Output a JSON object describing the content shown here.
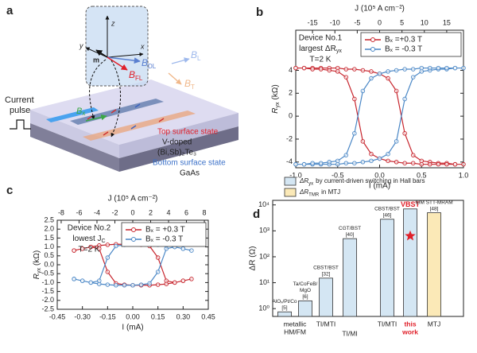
{
  "panel_a": {
    "label": "a",
    "z": "z",
    "x": "x",
    "y": "y",
    "m": "m",
    "b_dl": [
      "B",
      "DL"
    ],
    "b_fl": [
      "B",
      "FL"
    ],
    "b_l": [
      "B",
      "L"
    ],
    "b_t": [
      "B",
      "T"
    ],
    "current_pulse": [
      "Current",
      "pulse"
    ],
    "b_x": [
      "B",
      "x"
    ],
    "top_surface": "Top surface state",
    "v_doped": "V-doped",
    "material": "(Bi,Sb)₂Te₃",
    "bottom_surface": "Bottom surface state",
    "substrate": "GaAs"
  },
  "chart_data": [
    {
      "type": "line",
      "panel_label": "b",
      "x2label": "J (10⁵ A cm⁻²)",
      "xlabel": "I (mA)",
      "ylabel": [
        "R",
        "yx",
        "(kΩ)"
      ],
      "annotation": {
        "device": "Device No.1",
        "metric": [
          "largest ΔR",
          "yx"
        ],
        "temperature": "T=2 K"
      },
      "xlim": [
        -1,
        1
      ],
      "xticks": [
        {
          "value": -1,
          "label": "-1.0"
        },
        -0.5,
        {
          "value": 0,
          "label": "0.0"
        },
        0.5,
        {
          "value": 1,
          "label": "1.0"
        }
      ],
      "x2lim": [
        -18.75,
        18.75
      ],
      "x2ticks": [
        -15,
        -10,
        -5,
        0,
        5,
        10,
        15
      ],
      "ylim": [
        -4.5,
        7.5
      ],
      "yticks": [
        -4,
        -2,
        0,
        2,
        4
      ],
      "legend": "upper right",
      "series": [
        {
          "name": "Bₓ =+0.3 T",
          "color": "#c7252d",
          "x": [
            -1,
            -0.9,
            -0.8,
            -0.7,
            -0.6,
            -0.5,
            -0.4,
            -0.3,
            -0.2,
            -0.1,
            0,
            0.1,
            0.2,
            0.3,
            0.4,
            0.5,
            0.6,
            0.7,
            0.8,
            0.9,
            1,
            0.9,
            0.8,
            0.7,
            0.6,
            0.5,
            0.4,
            0.3,
            0.2,
            0.1,
            0,
            -0.1,
            -0.2,
            -0.3,
            -0.4,
            -0.5,
            -0.6,
            -0.7,
            -0.8,
            -0.9,
            -1
          ],
          "values": [
            4.2,
            4.2,
            4.2,
            4.2,
            4.2,
            4.2,
            4.1,
            4.1,
            4.0,
            3.9,
            3.7,
            3.3,
            2.2,
            -1.5,
            -3.4,
            -3.9,
            -4.0,
            -4.1,
            -4.1,
            -4.2,
            -4.2,
            -4.2,
            -4.2,
            -4.2,
            -4.2,
            -4.2,
            -4.1,
            -4.1,
            -4.0,
            -3.9,
            -3.7,
            -3.3,
            -2.2,
            1.5,
            3.4,
            3.9,
            4.0,
            4.1,
            4.1,
            4.2,
            4.2
          ]
        },
        {
          "name": "Bₓ = -0.3 T",
          "color": "#4a87c6",
          "x": [
            -1,
            -0.9,
            -0.8,
            -0.7,
            -0.6,
            -0.5,
            -0.4,
            -0.3,
            -0.2,
            -0.1,
            0,
            0.1,
            0.2,
            0.3,
            0.4,
            0.5,
            0.6,
            0.7,
            0.8,
            0.9,
            1,
            0.9,
            0.8,
            0.7,
            0.6,
            0.5,
            0.4,
            0.3,
            0.2,
            0.1,
            0,
            -0.1,
            -0.2,
            -0.3,
            -0.4,
            -0.5,
            -0.6,
            -0.7,
            -0.8,
            -0.9,
            -1
          ],
          "values": [
            -4.2,
            -4.2,
            -4.2,
            -4.2,
            -4.2,
            -4.2,
            -4.1,
            -4.1,
            -4.0,
            -3.9,
            -3.7,
            -3.3,
            -2.2,
            1.5,
            3.4,
            3.9,
            4.0,
            4.1,
            4.1,
            4.2,
            4.2,
            4.2,
            4.2,
            4.2,
            4.2,
            4.2,
            4.1,
            4.1,
            4.0,
            3.9,
            3.7,
            3.3,
            2.2,
            -1.5,
            -3.4,
            -3.9,
            -4.0,
            -4.1,
            -4.1,
            -4.2,
            -4.2
          ]
        }
      ]
    },
    {
      "type": "line",
      "panel_label": "c",
      "x2label": "J (10⁵ A cm⁻²)",
      "xlabel": "I (mA)",
      "ylabel": [
        "R",
        "yx",
        "(kΩ)"
      ],
      "annotation": {
        "device": "Device No.2",
        "metric": [
          "lowest J",
          "C"
        ],
        "temperature": "T=2 K"
      },
      "xlim": [
        -0.45,
        0.45
      ],
      "xticks": [
        -0.45,
        {
          "value": -0.3,
          "label": "-0.30"
        },
        -0.15,
        {
          "value": 0,
          "label": "0.00"
        },
        0.15,
        {
          "value": 0.3,
          "label": "0.30"
        },
        0.45
      ],
      "x2lim": [
        -8.44,
        8.44
      ],
      "x2ticks": [
        -8,
        -6,
        -4,
        -2,
        0,
        2,
        4,
        6,
        8
      ],
      "ylim": [
        -2.5,
        2.5
      ],
      "yticks": [
        -2.5,
        {
          "value": -2,
          "label": "-2.0"
        },
        -1.5,
        {
          "value": -1,
          "label": "-1.0"
        },
        -0.5,
        {
          "value": 0,
          "label": "0.0"
        },
        0.5,
        {
          "value": 1,
          "label": "1.0"
        },
        1.5,
        {
          "value": 2,
          "label": "2.0"
        },
        2.5
      ],
      "legend": "upper right",
      "series": [
        {
          "name": "Bₓ = +0.3 T",
          "color": "#c7252d",
          "x": [
            -0.35,
            -0.3,
            -0.25,
            -0.2,
            -0.15,
            -0.1,
            -0.05,
            0,
            0.05,
            0.1,
            0.15,
            0.2,
            0.25,
            0.3,
            0.35,
            0.3,
            0.25,
            0.2,
            0.15,
            0.1,
            0.05,
            0,
            -0.05,
            -0.1,
            -0.15,
            -0.2,
            -0.25,
            -0.3,
            -0.35
          ],
          "values": [
            0.8,
            0.9,
            1.0,
            1.08,
            1.12,
            1.15,
            1.15,
            1.15,
            1.12,
            1.05,
            0.4,
            -0.9,
            -1.0,
            -0.9,
            -0.8,
            -0.9,
            -1.0,
            -1.08,
            -1.12,
            -1.15,
            -1.15,
            -1.15,
            -1.12,
            -1.05,
            -0.4,
            0.9,
            1.0,
            0.9,
            0.8
          ]
        },
        {
          "name": "Bₓ = -0.3 T",
          "color": "#4a87c6",
          "x": [
            -0.35,
            -0.3,
            -0.25,
            -0.2,
            -0.15,
            -0.1,
            -0.05,
            0,
            0.05,
            0.1,
            0.15,
            0.2,
            0.25,
            0.3,
            0.35,
            0.3,
            0.25,
            0.2,
            0.15,
            0.1,
            0.05,
            0,
            -0.05,
            -0.1,
            -0.15,
            -0.2,
            -0.25,
            -0.3,
            -0.35
          ],
          "values": [
            -0.8,
            -0.9,
            -1.0,
            -1.08,
            -1.12,
            -1.15,
            -1.15,
            -1.15,
            -1.12,
            -1.05,
            -0.4,
            0.9,
            1.0,
            0.9,
            0.8,
            0.9,
            1.0,
            1.08,
            1.12,
            1.15,
            1.15,
            1.15,
            1.12,
            1.05,
            0.4,
            -0.9,
            -1.0,
            -0.9,
            -0.8
          ]
        }
      ]
    },
    {
      "type": "bar",
      "panel_label": "d",
      "ylabel": "ΔR (Ω)",
      "log_y": true,
      "ylim": [
        0.5,
        15000
      ],
      "yticks": [
        {
          "value": 1,
          "label": "10⁰"
        },
        {
          "value": 10,
          "label": "10¹"
        },
        {
          "value": 100,
          "label": "10²"
        },
        {
          "value": 1000,
          "label": "10³"
        },
        {
          "value": 10000,
          "label": "10⁴"
        }
      ],
      "categories": [
        [
          "AlOₓ/Pt/Co",
          "[5]"
        ],
        [
          "Ta/CoFeB/",
          "MgO",
          "[6]"
        ],
        [
          "CBST/BST",
          "[32]"
        ],
        [
          "CGT/BST",
          "[40]"
        ],
        [
          "CBST/BST",
          "[46]"
        ],
        [
          "VBST"
        ],
        [
          "IBM STT-MRAM",
          "[48]"
        ]
      ],
      "group_labels": [
        [
          "metallic",
          "HM/FM"
        ],
        [
          "TI/MTI"
        ],
        [
          "TI/MI"
        ],
        [
          "TI/MTI"
        ],
        [
          "this",
          "work"
        ],
        [
          "MTJ"
        ]
      ],
      "series": [
        {
          "name": [
            "ΔR",
            "yx",
            "by current-driven switching in Hall bars"
          ],
          "color": "#d4e6f3",
          "values": [
            0.75,
            2,
            15,
            500,
            2800,
            7000,
            null
          ]
        },
        {
          "name": [
            "ΔR",
            "TMR",
            "in MTJ"
          ],
          "color": "#fbe9b7",
          "values": [
            null,
            null,
            null,
            null,
            null,
            null,
            5000
          ]
        }
      ]
    }
  ]
}
